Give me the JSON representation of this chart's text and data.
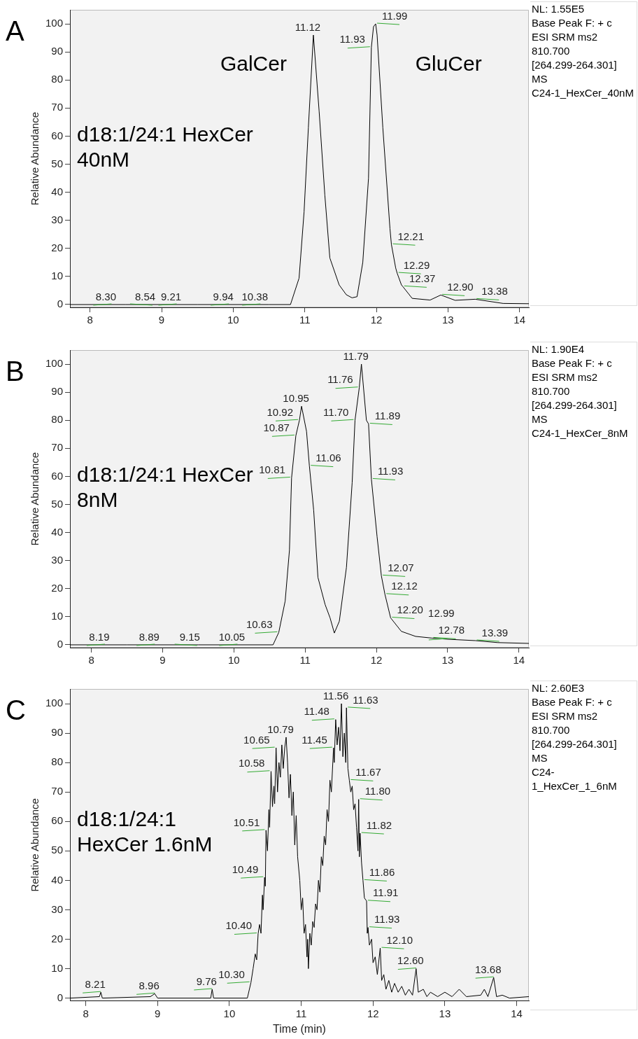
{
  "chart_data": [
    {
      "type": "line",
      "title": "A",
      "subtitle": "d18:1/24:1 HexCer\n40nM",
      "ylabel": "Relative Abundance",
      "xlim": [
        7.72,
        14.13
      ],
      "ylim": [
        -1,
        105
      ],
      "xticks": [
        8,
        9,
        10,
        11,
        12,
        13,
        14
      ],
      "yticks": [
        0,
        10,
        20,
        30,
        40,
        50,
        60,
        70,
        80,
        90,
        100
      ],
      "grid": false,
      "legend": false,
      "marker": "none",
      "series": [
        {
          "color": "#000000",
          "x": [
            7.72,
            8.5,
            9.5,
            10.5,
            10.8,
            10.92,
            10.99,
            11.05,
            11.12,
            11.2,
            11.28,
            11.35,
            11.48,
            11.58,
            11.66,
            11.73,
            11.81,
            11.89,
            11.93,
            11.96,
            11.99,
            12.01,
            12.09,
            12.19,
            12.21,
            12.27,
            12.29,
            12.35,
            12.37,
            12.5,
            12.75,
            12.9,
            13.1,
            13.38,
            13.77,
            14.13
          ],
          "values": [
            0,
            0,
            0,
            0,
            0,
            9.4,
            33,
            63,
            96,
            69,
            39,
            16.6,
            7,
            3.5,
            2.4,
            2.8,
            15,
            45,
            91.6,
            99,
            100,
            96,
            63,
            27,
            21.4,
            13,
            11.2,
            7,
            6.4,
            2.2,
            1.6,
            3.4,
            1.5,
            1.9,
            0.4,
            0.3
          ]
        }
      ],
      "annotations": [
        "GalCer",
        "GluCer",
        {
          "text": "8.30",
          "x": 8.3,
          "y": 0
        },
        {
          "text": "8.54",
          "x": 8.54,
          "y": 0
        },
        {
          "text": "9.21",
          "x": 9.21,
          "y": 0
        },
        {
          "text": "9.94",
          "x": 9.94,
          "y": 0
        },
        {
          "text": "10.38",
          "x": 10.38,
          "y": 0
        },
        {
          "text": "11.12",
          "x": 11.12,
          "y": 96
        },
        {
          "text": "11.93",
          "x": 11.93,
          "y": 91.6
        },
        {
          "text": "11.99",
          "x": 11.99,
          "y": 100
        },
        {
          "text": "12.21",
          "x": 12.21,
          "y": 21.4
        },
        {
          "text": "12.29",
          "x": 12.29,
          "y": 11.2
        },
        {
          "text": "12.37",
          "x": 12.37,
          "y": 6.4
        },
        {
          "text": "12.90",
          "x": 12.9,
          "y": 3.4
        },
        {
          "text": "13.38",
          "x": 13.38,
          "y": 1.9
        },
        "NL: 1.55E5",
        "Base Peak F: + c",
        "ESI SRM ms2",
        "810.700",
        "[264.299-264.301]",
        "MS",
        "C24-1_HexCer_40nM"
      ]
    },
    {
      "type": "line",
      "title": "B",
      "subtitle": "d18:1/24:1 HexCer\n8nM",
      "ylabel": "Relative Abundance",
      "xlim": [
        7.7,
        14.14
      ],
      "ylim": [
        -1,
        105
      ],
      "xticks": [
        8,
        9,
        10,
        11,
        12,
        13,
        14
      ],
      "yticks": [
        0,
        10,
        20,
        30,
        40,
        50,
        60,
        70,
        80,
        90,
        100
      ],
      "grid": false,
      "legend": false,
      "marker": "none",
      "series": [
        {
          "color": "#000000",
          "x": [
            7.7,
            8.5,
            9.5,
            10.55,
            10.63,
            10.72,
            10.78,
            10.81,
            10.87,
            10.92,
            10.95,
            11.02,
            11.06,
            11.12,
            11.18,
            11.28,
            11.35,
            11.41,
            11.48,
            11.58,
            11.66,
            11.7,
            11.76,
            11.79,
            11.86,
            11.89,
            11.93,
            12.01,
            12.07,
            12.12,
            12.2,
            12.35,
            12.55,
            12.78,
            12.99,
            13.39,
            13.7,
            14.14
          ],
          "values": [
            0,
            0,
            0,
            0,
            4.4,
            15.6,
            33.7,
            59.5,
            74.5,
            80,
            85,
            76,
            63.7,
            48,
            24,
            14.4,
            9.6,
            4.2,
            8.4,
            27.6,
            57.7,
            80,
            91.6,
            100,
            80,
            78.7,
            59,
            38.5,
            24.6,
            18,
            9.6,
            4.8,
            3,
            2.4,
            2,
            1.5,
            0.8,
            0.5
          ]
        }
      ],
      "annotations": [
        {
          "text": "8.19",
          "x": 8.19,
          "y": 0
        },
        {
          "text": "8.89",
          "x": 8.89,
          "y": 0
        },
        {
          "text": "9.15",
          "x": 9.15,
          "y": 0
        },
        {
          "text": "10.05",
          "x": 10.05,
          "y": 0
        },
        {
          "text": "10.63",
          "x": 10.63,
          "y": 4.4
        },
        {
          "text": "10.81",
          "x": 10.81,
          "y": 59.5
        },
        {
          "text": "10.87",
          "x": 10.87,
          "y": 74.5
        },
        {
          "text": "10.92",
          "x": 10.92,
          "y": 80
        },
        {
          "text": "10.95",
          "x": 10.95,
          "y": 85
        },
        {
          "text": "11.06",
          "x": 11.06,
          "y": 63.7
        },
        {
          "text": "11.70",
          "x": 11.7,
          "y": 80
        },
        {
          "text": "11.76",
          "x": 11.76,
          "y": 91.6
        },
        {
          "text": "11.79",
          "x": 11.79,
          "y": 100
        },
        {
          "text": "11.89",
          "x": 11.89,
          "y": 78.7
        },
        {
          "text": "11.93",
          "x": 11.93,
          "y": 59
        },
        {
          "text": "12.07",
          "x": 12.07,
          "y": 24.6
        },
        {
          "text": "12.12",
          "x": 12.12,
          "y": 18
        },
        {
          "text": "12.20",
          "x": 12.2,
          "y": 9.6
        },
        {
          "text": "12.78",
          "x": 12.78,
          "y": 2.4
        },
        {
          "text": "12.99",
          "x": 12.99,
          "y": 2
        },
        {
          "text": "13.39",
          "x": 13.39,
          "y": 1.5
        },
        "NL: 1.90E4",
        "Base Peak F: + c",
        "ESI SRM ms2",
        "810.700",
        "[264.299-264.301]",
        "MS",
        "C24-1_HexCer_8nM"
      ]
    },
    {
      "type": "line",
      "title": "C",
      "subtitle": "d18:1/24:1\nHexCer 1.6nM",
      "xlabel": "Time (min)",
      "ylabel": "Relative Abundance",
      "xlim": [
        7.78,
        14.17
      ],
      "ylim": [
        -1,
        105
      ],
      "xticks": [
        8,
        9,
        10,
        11,
        12,
        13,
        14
      ],
      "yticks": [
        0,
        10,
        20,
        30,
        40,
        50,
        60,
        70,
        80,
        90,
        100
      ],
      "grid": false,
      "legend": false,
      "marker": "none",
      "series": [
        {
          "color": "#000000",
          "x": [
            7.78,
            8.19,
            8.21,
            8.23,
            8.9,
            8.96,
            9.0,
            9.74,
            9.76,
            9.78,
            10.25,
            10.3,
            10.33,
            10.36,
            10.38,
            10.4,
            10.42,
            10.44,
            10.46,
            10.47,
            10.49,
            10.5,
            10.51,
            10.53,
            10.55,
            10.56,
            10.58,
            10.6,
            10.62,
            10.63,
            10.65,
            10.67,
            10.69,
            10.71,
            10.73,
            10.75,
            10.77,
            10.79,
            10.81,
            10.83,
            10.85,
            10.87,
            10.89,
            10.91,
            10.93,
            10.95,
            10.98,
            11.0,
            11.02,
            11.04,
            11.06,
            11.08,
            11.09,
            11.1,
            11.12,
            11.14,
            11.16,
            11.18,
            11.2,
            11.22,
            11.24,
            11.26,
            11.28,
            11.3,
            11.32,
            11.34,
            11.36,
            11.38,
            11.4,
            11.42,
            11.45,
            11.46,
            11.48,
            11.5,
            11.52,
            11.54,
            11.56,
            11.58,
            11.6,
            11.62,
            11.63,
            11.65,
            11.67,
            11.69,
            11.71,
            11.73,
            11.75,
            11.77,
            11.79,
            11.8,
            11.81,
            11.82,
            11.84,
            11.86,
            11.88,
            11.91,
            11.92,
            11.93,
            11.95,
            11.98,
            12.0,
            12.03,
            12.06,
            12.1,
            12.12,
            12.15,
            12.18,
            12.22,
            12.26,
            12.3,
            12.35,
            12.4,
            12.45,
            12.5,
            12.55,
            12.6,
            12.63,
            12.7,
            12.75,
            12.8,
            12.9,
            13.0,
            13.1,
            13.2,
            13.3,
            13.5,
            13.55,
            13.6,
            13.68,
            13.72,
            13.8,
            13.9,
            14.17
          ],
          "values": [
            0,
            0.5,
            2,
            0,
            0.5,
            1.5,
            0,
            0,
            3,
            0,
            0,
            5.3,
            10,
            15,
            13,
            21.9,
            25,
            22,
            35,
            30,
            41,
            38,
            57,
            50,
            64,
            58,
            77,
            65,
            72,
            66,
            85,
            70,
            80,
            75,
            86,
            78,
            85,
            88.6,
            80,
            68,
            76,
            62,
            70,
            52,
            62,
            48,
            40,
            30,
            34,
            22,
            25,
            14,
            20,
            10,
            22,
            18,
            26,
            24,
            32,
            30,
            40,
            36,
            48,
            45,
            55,
            52,
            64,
            60,
            74,
            70,
            85,
            80,
            94.6,
            86,
            92,
            84,
            100,
            82,
            90,
            80,
            98.6,
            78,
            74,
            70,
            72,
            64,
            66,
            58,
            50,
            67.5,
            48,
            56,
            46,
            40,
            34,
            33,
            22,
            24,
            18,
            20,
            12,
            14,
            8,
            17,
            6,
            8,
            3,
            6,
            2,
            5,
            2,
            4,
            1,
            3,
            1,
            10,
            2,
            3,
            0.5,
            2,
            0.5,
            2,
            0.5,
            3,
            0.5,
            1,
            3,
            0.5,
            7,
            0.5,
            1,
            0,
            0.5
          ]
        }
      ],
      "annotations": [
        {
          "text": "8.21",
          "x": 8.21,
          "y": 2
        },
        {
          "text": "8.96",
          "x": 8.96,
          "y": 1.5
        },
        {
          "text": "9.76",
          "x": 9.76,
          "y": 3
        },
        {
          "text": "10.30",
          "x": 10.3,
          "y": 5.3
        },
        {
          "text": "10.40",
          "x": 10.4,
          "y": 21.9
        },
        {
          "text": "10.49",
          "x": 10.49,
          "y": 41
        },
        {
          "text": "10.51",
          "x": 10.51,
          "y": 57
        },
        {
          "text": "10.58",
          "x": 10.58,
          "y": 77
        },
        {
          "text": "10.65",
          "x": 10.65,
          "y": 85
        },
        {
          "text": "10.79",
          "x": 10.79,
          "y": 88.6
        },
        {
          "text": "11.45",
          "x": 11.45,
          "y": 85
        },
        {
          "text": "11.48",
          "x": 11.48,
          "y": 94.6
        },
        {
          "text": "11.56",
          "x": 11.56,
          "y": 100
        },
        {
          "text": "11.63",
          "x": 11.63,
          "y": 98.6
        },
        {
          "text": "11.67",
          "x": 11.67,
          "y": 74
        },
        {
          "text": "11.80",
          "x": 11.8,
          "y": 67.5
        },
        {
          "text": "11.82",
          "x": 11.82,
          "y": 56
        },
        {
          "text": "11.86",
          "x": 11.86,
          "y": 40
        },
        {
          "text": "11.91",
          "x": 11.91,
          "y": 33
        },
        {
          "text": "11.93",
          "x": 11.93,
          "y": 24
        },
        {
          "text": "12.10",
          "x": 12.1,
          "y": 17
        },
        {
          "text": "12.60",
          "x": 12.6,
          "y": 10
        },
        {
          "text": "13.68",
          "x": 13.68,
          "y": 7
        },
        "NL: 2.60E3",
        "Base Peak F: + c",
        "ESI SRM ms2",
        "810.700",
        "[264.299-264.301]",
        "MS",
        "C24-1_HexCer_1_6nM"
      ]
    }
  ]
}
